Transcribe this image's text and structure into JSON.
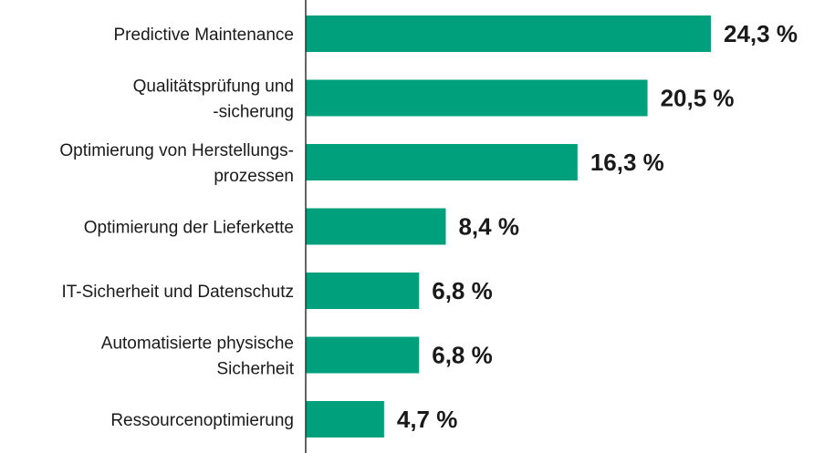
{
  "colors": {
    "bar": "#00a07d",
    "axis": "#333333",
    "text": "#1a1a1a"
  },
  "chart_data": {
    "type": "bar",
    "orientation": "horizontal",
    "categories": [
      [
        "Predictive Maintenance"
      ],
      [
        "Qualitätsprüfung und",
        "-sicherung"
      ],
      [
        "Optimierung von Herstellungs-",
        "prozessen"
      ],
      [
        "Optimierung der Lieferkette"
      ],
      [
        "IT-Sicherheit und Datenschutz"
      ],
      [
        "Automatisierte physische",
        "Sicherheit"
      ],
      [
        "Ressourcenoptimierung"
      ]
    ],
    "values": [
      24.3,
      20.5,
      16.3,
      8.4,
      6.8,
      6.8,
      4.7
    ],
    "value_labels": [
      "24,3 %",
      "20,5 %",
      "16,3 %",
      "8,4 %",
      "6,8 %",
      "6,8 %",
      "4,7 %"
    ],
    "title": "",
    "xlabel": "",
    "ylabel": "",
    "xlim": [
      0,
      24.3
    ],
    "grid": false,
    "legend": "none"
  }
}
